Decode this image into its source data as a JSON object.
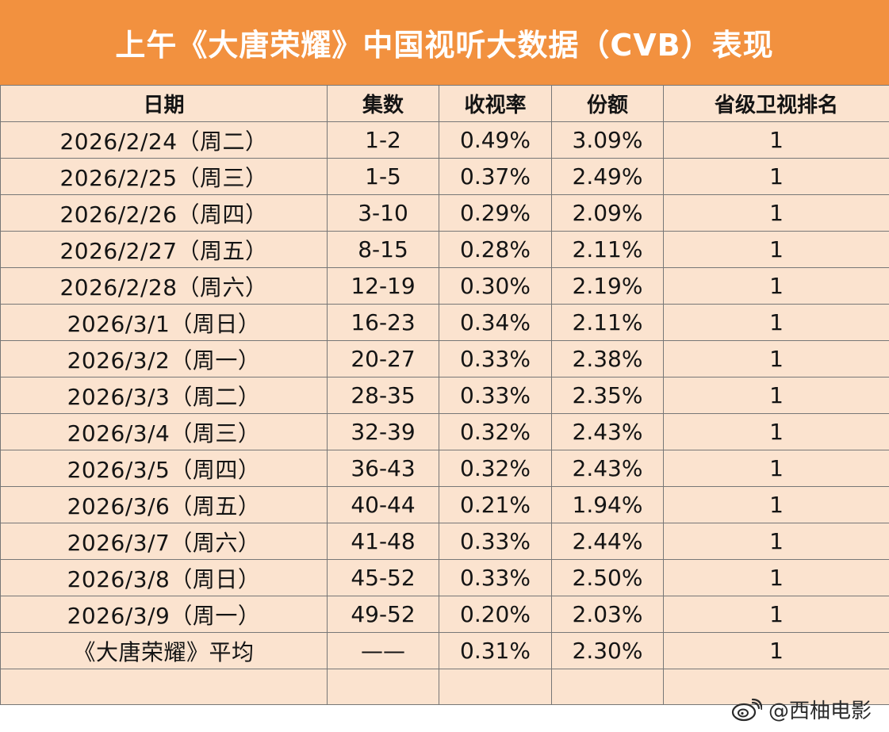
{
  "title": "上午《大唐荣耀》中国视听大数据（CVB）表现",
  "colors": {
    "header_bg": "#f2913f",
    "cell_bg": "#fbe3cf",
    "border": "#777777"
  },
  "headers": [
    "日期",
    "集数",
    "收视率",
    "份额",
    "省级卫视排名"
  ],
  "rows": [
    [
      "2026/2/24（周二）",
      "1-2",
      "0.49%",
      "3.09%",
      "1"
    ],
    [
      "2026/2/25（周三）",
      "1-5",
      "0.37%",
      "2.49%",
      "1"
    ],
    [
      "2026/2/26（周四）",
      "3-10",
      "0.29%",
      "2.09%",
      "1"
    ],
    [
      "2026/2/27（周五）",
      "8-15",
      "0.28%",
      "2.11%",
      "1"
    ],
    [
      "2026/2/28（周六）",
      "12-19",
      "0.30%",
      "2.19%",
      "1"
    ],
    [
      "2026/3/1（周日）",
      "16-23",
      "0.34%",
      "2.11%",
      "1"
    ],
    [
      "2026/3/2（周一）",
      "20-27",
      "0.33%",
      "2.38%",
      "1"
    ],
    [
      "2026/3/3（周二）",
      "28-35",
      "0.33%",
      "2.35%",
      "1"
    ],
    [
      "2026/3/4（周三）",
      "32-39",
      "0.32%",
      "2.43%",
      "1"
    ],
    [
      "2026/3/5（周四）",
      "36-43",
      "0.32%",
      "2.43%",
      "1"
    ],
    [
      "2026/3/6（周五）",
      "40-44",
      "0.21%",
      "1.94%",
      "1"
    ],
    [
      "2026/3/7（周六）",
      "41-48",
      "0.33%",
      "2.44%",
      "1"
    ],
    [
      "2026/3/8（周日）",
      "45-52",
      "0.33%",
      "2.50%",
      "1"
    ],
    [
      "2026/3/9（周一）",
      "49-52",
      "0.20%",
      "2.03%",
      "1"
    ],
    [
      "《大唐荣耀》平均",
      "——",
      "0.31%",
      "2.30%",
      "1"
    ]
  ],
  "watermark": {
    "icon": "weibo-icon",
    "text": "@西柚电影"
  }
}
